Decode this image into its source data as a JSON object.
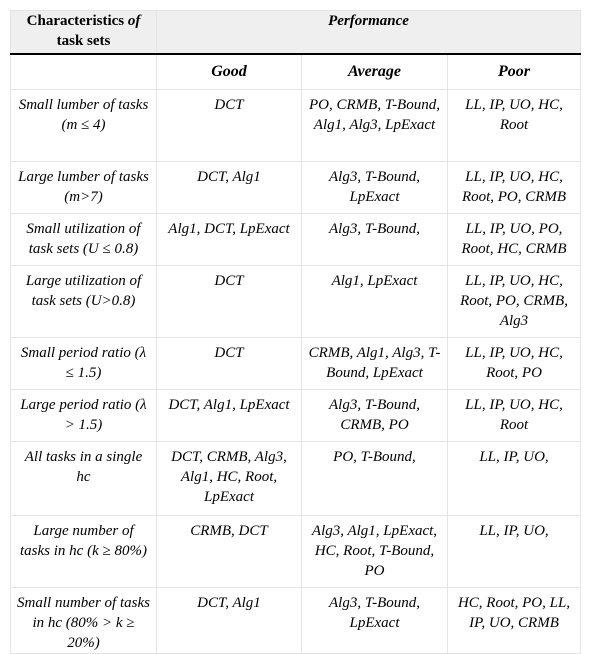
{
  "header": {
    "characteristics_prefix": "Characteristics ",
    "characteristics_of": "of",
    "characteristics_suffix": "task sets",
    "performance": "Performance",
    "good": "Good",
    "average": "Average",
    "poor": "Poor"
  },
  "rows": [
    {
      "characteristic": "Small lumber of tasks (m ≤ 4)",
      "good": "DCT",
      "average": "PO, CRMB, T-Bound, Alg1, Alg3, LpExact",
      "poor": "LL, IP, UO, HC, Root"
    },
    {
      "characteristic": "Large lumber of tasks (m>7)",
      "good": "DCT, Alg1",
      "average": "Alg3, T-Bound, LpExact",
      "poor": "LL, IP, UO, HC, Root, PO, CRMB"
    },
    {
      "characteristic": "Small utilization of task sets (U ≤ 0.8)",
      "good": "Alg1, DCT, LpExact",
      "average": "Alg3, T-Bound,",
      "poor": "LL, IP, UO, PO, Root, HC, CRMB"
    },
    {
      "characteristic": "Large utilization of task sets (U>0.8)",
      "good": "DCT",
      "average": "Alg1, LpExact",
      "poor": "LL, IP, UO, HC, Root, PO, CRMB, Alg3"
    },
    {
      "characteristic": "Small period ratio (λ ≤ 1.5)",
      "good": "DCT",
      "average": "CRMB, Alg1, Alg3, T-Bound, LpExact",
      "poor": "LL, IP, UO, HC, Root, PO"
    },
    {
      "characteristic": "Large period ratio (λ > 1.5)",
      "good": "DCT, Alg1, LpExact",
      "average": "Alg3, T-Bound, CRMB, PO",
      "poor": "LL, IP, UO, HC, Root"
    },
    {
      "characteristic": "All tasks in a single hc",
      "good": "DCT, CRMB, Alg3, Alg1, HC, Root, LpExact",
      "average": "PO, T-Bound,",
      "poor": "LL, IP, UO,"
    },
    {
      "characteristic": "Large number of tasks in hc (k ≥ 80%)",
      "good": "CRMB, DCT",
      "average": "Alg3, Alg1, LpExact, HC, Root, T-Bound, PO",
      "poor": "LL, IP, UO,"
    },
    {
      "characteristic": "Small number of tasks in hc (80% > k ≥ 20%)",
      "good": "DCT, Alg1",
      "average": "Alg3, T-Bound, LpExact",
      "poor": "HC, Root, PO, LL, IP, UO, CRMB"
    }
  ]
}
